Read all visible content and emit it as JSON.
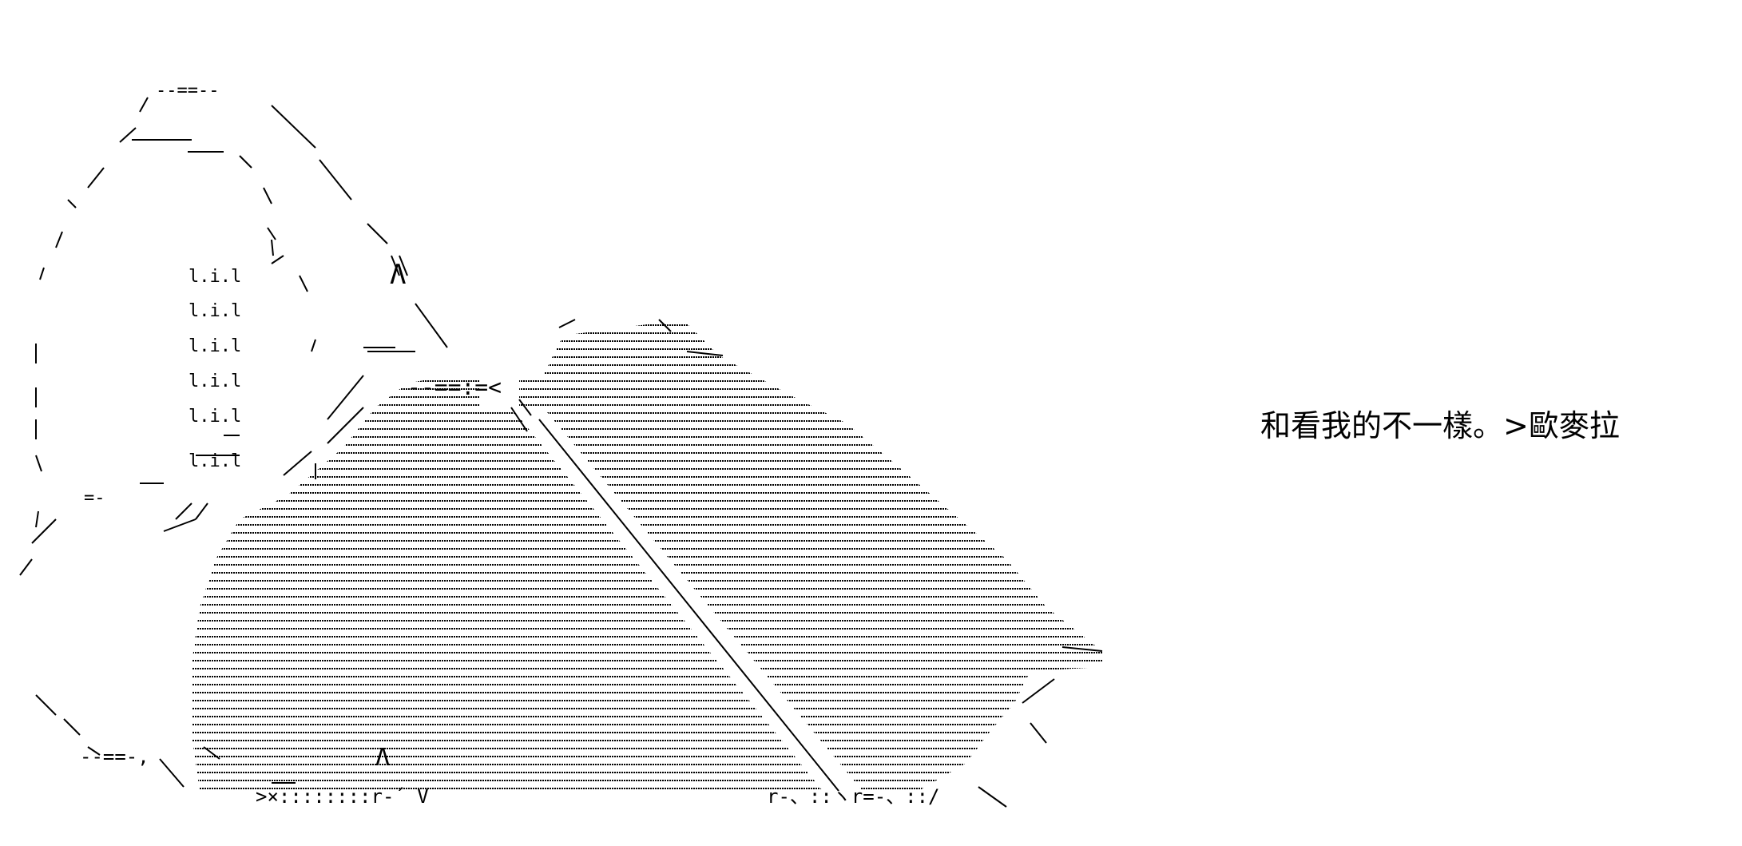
{
  "caption": "和看我的不一樣。>歐麥拉",
  "colors": {
    "background": "#ffffff",
    "ink": "#000000"
  },
  "art_glyphs": {
    "top_arc": "--==--",
    "tie_bow": "--==:=<",
    "bottom_left": "‐‐==‐,",
    "bottom_mid": ">×::::::::r‐´ V",
    "bottom_right": "r‐、::ヽr=‐、::/",
    "peak_mark": "Λ",
    "ears": "Λ",
    "side_lil": "l.i.l",
    "hook": "=-"
  }
}
